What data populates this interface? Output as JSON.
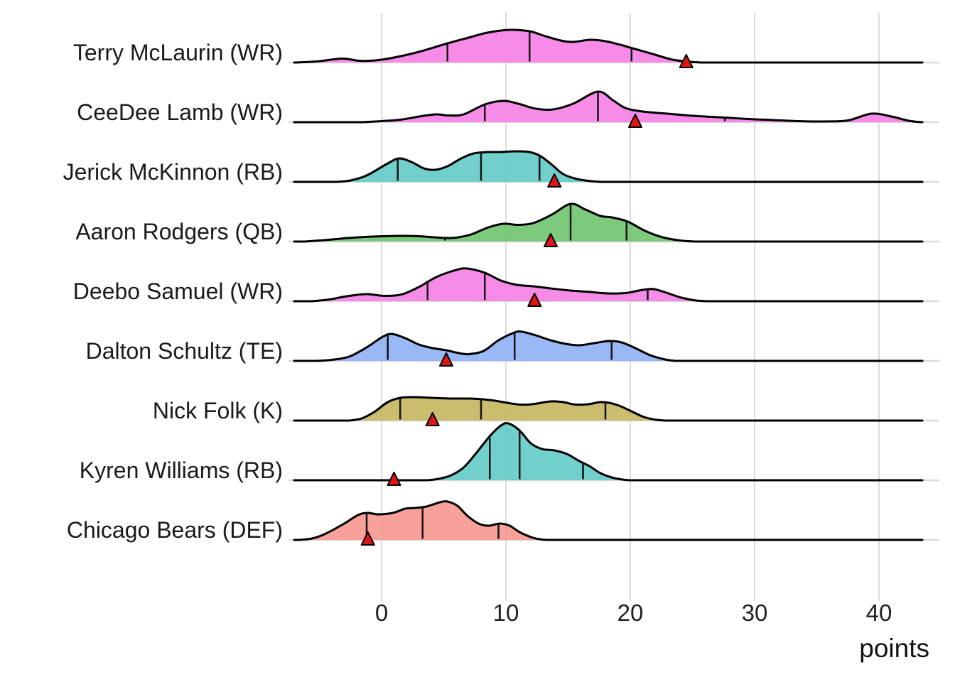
{
  "chart_data": {
    "type": "ridgeline",
    "xlabel": "points",
    "x_ticks": [
      0,
      10,
      20,
      30,
      40
    ],
    "xlim": [
      -7.5,
      44
    ],
    "grid": "vertical-and-row-baselines",
    "legend": "none",
    "colors": {
      "gridline": "#dbdbdb",
      "row_baseline": "#dbdbdb",
      "curve_outline": "#000000",
      "quartile_line": "#111111",
      "actual_marker_fill": "#e01616",
      "actual_marker_stroke": "#000000"
    },
    "marker_shape": "triangle-up",
    "series": [
      {
        "name": "Terry McLaurin (WR)",
        "color": "#f580e6",
        "actual": 24.5,
        "quartiles": [
          [
            5.3,
            27
          ],
          [
            11.9,
            44
          ],
          [
            20.1,
            19
          ]
        ],
        "density": [
          [
            -7,
            0
          ],
          [
            -5.2,
            1.5
          ],
          [
            -3.2,
            5.5
          ],
          [
            -1.8,
            2.5
          ],
          [
            -0.5,
            3
          ],
          [
            1,
            7
          ],
          [
            3,
            15
          ],
          [
            5.3,
            27
          ],
          [
            7,
            35
          ],
          [
            8.5,
            42
          ],
          [
            10.3,
            46
          ],
          [
            11.9,
            44
          ],
          [
            13,
            38
          ],
          [
            14.4,
            31
          ],
          [
            15.4,
            29
          ],
          [
            16.8,
            32
          ],
          [
            18,
            30
          ],
          [
            19.2,
            25
          ],
          [
            20.4,
            19
          ],
          [
            22,
            11
          ],
          [
            23.4,
            4
          ],
          [
            24.8,
            1
          ],
          [
            25.8,
            0
          ]
        ]
      },
      {
        "name": "CeeDee Lamb (WR)",
        "color": "#f580e6",
        "actual": 20.4,
        "quartiles": [
          [
            8.3,
            25
          ],
          [
            17.4,
            43
          ],
          [
            27.6,
            6.5
          ]
        ],
        "density": [
          [
            -1.5,
            0
          ],
          [
            0,
            1.5
          ],
          [
            1.5,
            3.5
          ],
          [
            3.2,
            8.5
          ],
          [
            4.4,
            11
          ],
          [
            5.4,
            9.5
          ],
          [
            6.6,
            11
          ],
          [
            8.3,
            25
          ],
          [
            9.8,
            30
          ],
          [
            11,
            26
          ],
          [
            12.4,
            19
          ],
          [
            13.8,
            18
          ],
          [
            15.4,
            26
          ],
          [
            17.4,
            43
          ],
          [
            18.6,
            31
          ],
          [
            19.6,
            20
          ],
          [
            21,
            15
          ],
          [
            23,
            12
          ],
          [
            25,
            9
          ],
          [
            27.6,
            6.5
          ],
          [
            29.5,
            4.5
          ],
          [
            31.5,
            3
          ],
          [
            33.5,
            1.5
          ],
          [
            35.5,
            1
          ],
          [
            37.5,
            2.5
          ],
          [
            39.4,
            12
          ],
          [
            41,
            8
          ],
          [
            42.4,
            2
          ],
          [
            43.4,
            0
          ]
        ]
      },
      {
        "name": "Jerick McKinnon (RB)",
        "color": "#62cbc6",
        "actual": 13.9,
        "quartiles": [
          [
            1.3,
            32
          ],
          [
            8.0,
            41
          ],
          [
            12.7,
            36
          ]
        ],
        "density": [
          [
            -3.6,
            0
          ],
          [
            -2.5,
            2
          ],
          [
            -1.2,
            9
          ],
          [
            0.4,
            25
          ],
          [
            1.4,
            33
          ],
          [
            2.4,
            28
          ],
          [
            3.4,
            19
          ],
          [
            4.3,
            17
          ],
          [
            5.3,
            22
          ],
          [
            6.4,
            33
          ],
          [
            7.4,
            40
          ],
          [
            8.5,
            42
          ],
          [
            9.6,
            42
          ],
          [
            10.8,
            43
          ],
          [
            11.9,
            42
          ],
          [
            12.8,
            36
          ],
          [
            13.7,
            24
          ],
          [
            14.6,
            11
          ],
          [
            15.6,
            4.5
          ],
          [
            16.6,
            1.5
          ],
          [
            17.6,
            0
          ]
        ]
      },
      {
        "name": "Aaron Rodgers (QB)",
        "color": "#6fc46f",
        "actual": 13.6,
        "quartiles": [
          [
            5.1,
            5
          ],
          [
            15.2,
            52
          ],
          [
            19.7,
            28
          ]
        ],
        "density": [
          [
            -6.2,
            0
          ],
          [
            -4.6,
            2
          ],
          [
            -3,
            4.5
          ],
          [
            -1.4,
            6.5
          ],
          [
            0.2,
            7.5
          ],
          [
            1.6,
            8
          ],
          [
            3,
            7.5
          ],
          [
            4.2,
            6
          ],
          [
            5.1,
            5
          ],
          [
            6,
            5.5
          ],
          [
            7.2,
            10
          ],
          [
            8.6,
            20
          ],
          [
            9.8,
            25
          ],
          [
            11,
            23.5
          ],
          [
            12.2,
            26
          ],
          [
            13.7,
            38
          ],
          [
            15.2,
            53
          ],
          [
            16.4,
            45
          ],
          [
            17.6,
            36
          ],
          [
            18.5,
            34
          ],
          [
            19.8,
            28
          ],
          [
            21.2,
            15
          ],
          [
            22.6,
            6
          ],
          [
            24,
            1.5
          ],
          [
            25.2,
            0
          ]
        ]
      },
      {
        "name": "Deebo Samuel (WR)",
        "color": "#f580e6",
        "actual": 12.3,
        "quartiles": [
          [
            3.7,
            29
          ],
          [
            8.3,
            40
          ],
          [
            21.4,
            17
          ]
        ],
        "density": [
          [
            -5.6,
            0
          ],
          [
            -4.2,
            2.5
          ],
          [
            -2.8,
            7
          ],
          [
            -1.2,
            10
          ],
          [
            0.2,
            7.5
          ],
          [
            1.6,
            9.5
          ],
          [
            3,
            20
          ],
          [
            4.4,
            34
          ],
          [
            6,
            44
          ],
          [
            6.9,
            46
          ],
          [
            8.3,
            40
          ],
          [
            9.6,
            29
          ],
          [
            10.9,
            23
          ],
          [
            12.2,
            21
          ],
          [
            13.6,
            18
          ],
          [
            15.2,
            15
          ],
          [
            16.8,
            13
          ],
          [
            18.2,
            11
          ],
          [
            19.6,
            11.5
          ],
          [
            21,
            16
          ],
          [
            21.9,
            17
          ],
          [
            22.9,
            12
          ],
          [
            24.1,
            5
          ],
          [
            25.3,
            1
          ],
          [
            26.2,
            0
          ]
        ]
      },
      {
        "name": "Dalton Schultz (TE)",
        "color": "#8fb0f5",
        "actual": 5.2,
        "quartiles": [
          [
            0.5,
            37
          ],
          [
            10.7,
            40
          ],
          [
            18.5,
            27
          ]
        ],
        "density": [
          [
            -5.2,
            0
          ],
          [
            -4,
            1.5
          ],
          [
            -2.6,
            6
          ],
          [
            -1.2,
            19
          ],
          [
            0,
            33
          ],
          [
            0.8,
            38
          ],
          [
            1.9,
            32
          ],
          [
            3,
            23
          ],
          [
            4.1,
            18
          ],
          [
            5.2,
            15
          ],
          [
            6.2,
            11
          ],
          [
            7,
            9.5
          ],
          [
            8.2,
            14
          ],
          [
            9.4,
            29
          ],
          [
            10.7,
            40
          ],
          [
            11.3,
            41
          ],
          [
            12.4,
            36
          ],
          [
            13.6,
            29
          ],
          [
            14.8,
            24
          ],
          [
            15.9,
            22
          ],
          [
            17.1,
            25
          ],
          [
            18.3,
            28
          ],
          [
            19.3,
            26
          ],
          [
            20.4,
            18
          ],
          [
            21.6,
            8
          ],
          [
            22.8,
            2
          ],
          [
            23.6,
            0
          ]
        ]
      },
      {
        "name": "Nick Folk (K)",
        "color": "#c4b65e",
        "actual": 4.1,
        "quartiles": [
          [
            1.5,
            32
          ],
          [
            8.0,
            30
          ],
          [
            18.0,
            25
          ]
        ],
        "density": [
          [
            -2.6,
            0
          ],
          [
            -1.6,
            3
          ],
          [
            -0.6,
            12
          ],
          [
            0.5,
            26
          ],
          [
            1.5,
            32
          ],
          [
            2.6,
            33
          ],
          [
            4,
            32
          ],
          [
            5.5,
            31
          ],
          [
            7.1,
            31
          ],
          [
            8.1,
            30
          ],
          [
            9.1,
            28
          ],
          [
            10.1,
            25
          ],
          [
            11.1,
            22.5
          ],
          [
            12.1,
            23
          ],
          [
            13.6,
            27
          ],
          [
            14.6,
            26
          ],
          [
            15.6,
            22.5
          ],
          [
            16.6,
            23
          ],
          [
            17.6,
            26
          ],
          [
            18.3,
            25
          ],
          [
            19.1,
            21
          ],
          [
            20.1,
            13
          ],
          [
            21.1,
            5
          ],
          [
            22.1,
            1
          ],
          [
            22.9,
            0
          ]
        ]
      },
      {
        "name": "Kyren Williams (RB)",
        "color": "#62cbc6",
        "actual": 1.0,
        "quartiles": [
          [
            8.7,
            60
          ],
          [
            11.1,
            70
          ],
          [
            16.2,
            24
          ]
        ],
        "density": [
          [
            3.7,
            0
          ],
          [
            4.6,
            2
          ],
          [
            5.6,
            7
          ],
          [
            6.6,
            18
          ],
          [
            7.6,
            38
          ],
          [
            8.7,
            62
          ],
          [
            9.6,
            77
          ],
          [
            10.2,
            80
          ],
          [
            11.1,
            70
          ],
          [
            12,
            52
          ],
          [
            12.9,
            44
          ],
          [
            13.9,
            42
          ],
          [
            14.9,
            37
          ],
          [
            15.9,
            27
          ],
          [
            16.7,
            20
          ],
          [
            17.6,
            10
          ],
          [
            18.6,
            3.5
          ],
          [
            19.6,
            0.5
          ],
          [
            20.2,
            0
          ]
        ]
      },
      {
        "name": "Chicago Bears (DEF)",
        "color": "#f7968f",
        "actual": -1.1,
        "quartiles": [
          [
            -1.2,
            37
          ],
          [
            3.3,
            46
          ],
          [
            9.4,
            22
          ]
        ],
        "density": [
          [
            -6.6,
            0
          ],
          [
            -5.6,
            2
          ],
          [
            -4.6,
            8
          ],
          [
            -3.1,
            22
          ],
          [
            -1.9,
            35
          ],
          [
            -1.1,
            38
          ],
          [
            -0.3,
            36
          ],
          [
            0.9,
            38
          ],
          [
            1.9,
            44
          ],
          [
            2.7,
            45
          ],
          [
            3.6,
            47
          ],
          [
            4.7,
            53
          ],
          [
            5.3,
            54
          ],
          [
            6.1,
            48
          ],
          [
            6.9,
            34
          ],
          [
            7.8,
            23
          ],
          [
            8.6,
            20
          ],
          [
            9.5,
            23
          ],
          [
            10.3,
            20
          ],
          [
            11.1,
            11
          ],
          [
            12.1,
            3.5
          ],
          [
            12.9,
            0.5
          ],
          [
            13.6,
            0
          ]
        ]
      }
    ]
  }
}
